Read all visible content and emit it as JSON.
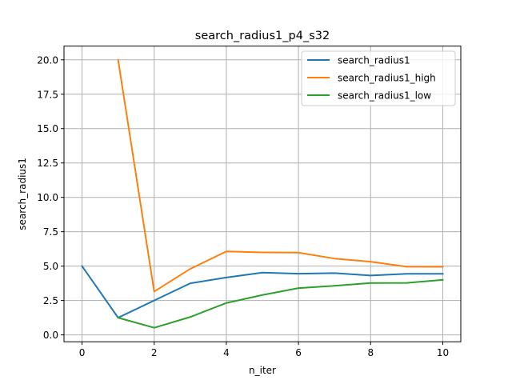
{
  "chart_data": {
    "type": "line",
    "title": "search_radius1_p4_s32",
    "xlabel": "n_iter",
    "ylabel": "search_radius1",
    "xlim": [
      -0.5,
      10.5
    ],
    "ylim": [
      -0.5,
      21.0
    ],
    "xticks": [
      0,
      2,
      4,
      6,
      8,
      10
    ],
    "xtick_labels": [
      "0",
      "2",
      "4",
      "6",
      "8",
      "10"
    ],
    "yticks": [
      0.0,
      2.5,
      5.0,
      7.5,
      10.0,
      12.5,
      15.0,
      17.5,
      20.0
    ],
    "ytick_labels": [
      "0.0",
      "2.5",
      "5.0",
      "7.5",
      "10.0",
      "12.5",
      "15.0",
      "17.5",
      "20.0"
    ],
    "grid": true,
    "legend_position": "top-right",
    "series": [
      {
        "name": "search_radius1",
        "color": "#1f77b4",
        "x": [
          0,
          1,
          2,
          3,
          4,
          5,
          6,
          7,
          8,
          9,
          10
        ],
        "y": [
          5.0,
          1.25,
          2.5,
          3.75,
          4.17,
          4.53,
          4.45,
          4.49,
          4.32,
          4.44,
          4.44
        ]
      },
      {
        "name": "search_radius1_high",
        "color": "#ff7f0e",
        "x": [
          1,
          2,
          3,
          4,
          5,
          6,
          7,
          8,
          9,
          10
        ],
        "y": [
          20.0,
          3.15,
          4.8,
          6.07,
          6.0,
          5.98,
          5.55,
          5.32,
          4.96,
          4.95
        ]
      },
      {
        "name": "search_radius1_low",
        "color": "#2ca02c",
        "x": [
          1,
          2,
          3,
          4,
          5,
          6,
          7,
          8,
          9,
          10
        ],
        "y": [
          1.25,
          0.52,
          1.3,
          2.32,
          2.9,
          3.4,
          3.57,
          3.77,
          3.78,
          4.0
        ]
      }
    ]
  }
}
